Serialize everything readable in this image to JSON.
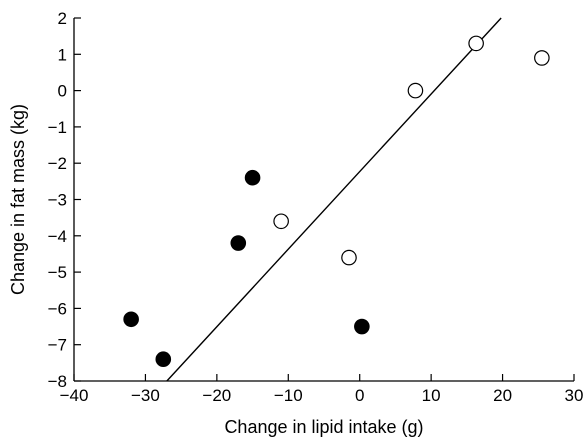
{
  "chart_data": {
    "type": "scatter",
    "title": "",
    "xlabel": "Change in lipid intake (g)",
    "ylabel": "Change in fat mass (kg)",
    "xlim": [
      -40,
      30
    ],
    "ylim": [
      -8,
      2
    ],
    "xticks": [
      -40,
      -30,
      -20,
      -10,
      0,
      10,
      20,
      30
    ],
    "yticks": [
      -8,
      -7,
      -6,
      -5,
      -4,
      -3,
      -2,
      -1,
      0,
      1,
      2
    ],
    "grid": false,
    "legend": "none",
    "series": [
      {
        "marker": "filled-circle",
        "color": "#000000",
        "points": [
          {
            "x": -32,
            "y": -6.3
          },
          {
            "x": -27.5,
            "y": -7.4
          },
          {
            "x": -17,
            "y": -4.2
          },
          {
            "x": -15,
            "y": -2.4
          },
          {
            "x": 0.3,
            "y": -6.5
          }
        ]
      },
      {
        "marker": "open-circle",
        "color": "#000000",
        "points": [
          {
            "x": -11,
            "y": -3.6
          },
          {
            "x": -1.5,
            "y": -4.6
          },
          {
            "x": 7.8,
            "y": 0.0
          },
          {
            "x": 16.3,
            "y": 1.3
          },
          {
            "x": 25.5,
            "y": 0.9
          }
        ]
      }
    ],
    "fit_line": {
      "x1": -27,
      "y1": -8,
      "x2": 19.8,
      "y2": 2
    }
  }
}
